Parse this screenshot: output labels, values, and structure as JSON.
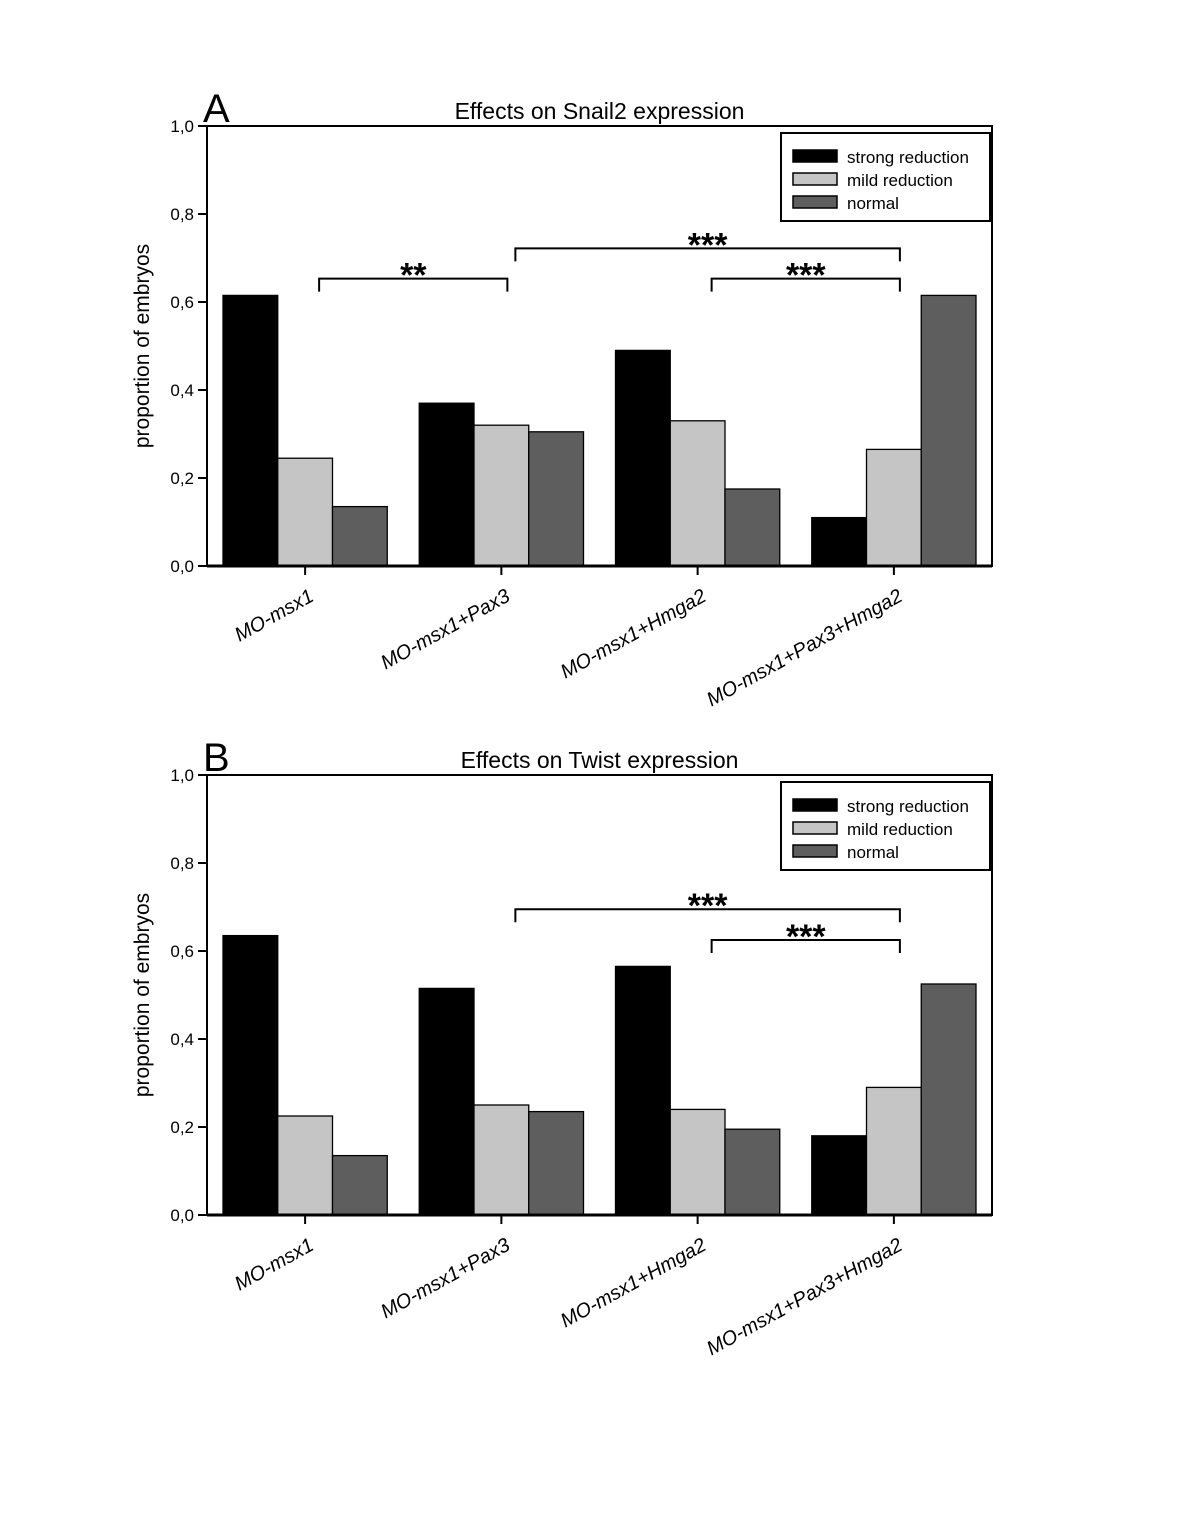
{
  "figure": {
    "background": "#ffffff",
    "panel_letters": [
      "A",
      "B"
    ]
  },
  "chart_data": [
    {
      "type": "bar",
      "panel_label": "A",
      "title": "Effects on Snail2 expression",
      "xlabel": "",
      "ylabel": "proportion of embryos",
      "ylim": [
        0,
        1
      ],
      "grid": false,
      "legend_position": "top-right",
      "decimal_separator": ",",
      "yticks": [
        "0,0",
        "0,2",
        "0,4",
        "0,6",
        "0,8",
        "1,0"
      ],
      "ytick_values": [
        0,
        0.2,
        0.4,
        0.6,
        0.8,
        1
      ],
      "categories": [
        "MO-msx1",
        "MO-msx1+Pax3",
        "MO-msx1+Hmga2",
        "MO-msx1+Pax3+Hmga2"
      ],
      "series": [
        {
          "key": "strong",
          "name": "strong reduction",
          "color": "#000000",
          "values": [
            0.615,
            0.37,
            0.49,
            0.11
          ]
        },
        {
          "key": "mild",
          "name": "mild reduction",
          "color": "#c5c5c5",
          "values": [
            0.245,
            0.32,
            0.33,
            0.265
          ]
        },
        {
          "key": "normal",
          "name": "normal",
          "color": "#5e5e5e",
          "values": [
            0.135,
            0.305,
            0.175,
            0.615
          ]
        }
      ],
      "significance_brackets": [
        {
          "from_group": 0,
          "to_group": 1,
          "label": "**",
          "height": 0.653
        },
        {
          "from_group": 1,
          "to_group": 3,
          "label": "***",
          "height": 0.722
        },
        {
          "from_group": 2,
          "to_group": 3,
          "label": "***",
          "height": 0.653
        }
      ]
    },
    {
      "type": "bar",
      "panel_label": "B",
      "title": "Effects on Twist expression",
      "xlabel": "",
      "ylabel": "proportion of embryos",
      "ylim": [
        0,
        1
      ],
      "grid": false,
      "legend_position": "top-right",
      "decimal_separator": ",",
      "yticks": [
        "0,0",
        "0,2",
        "0,4",
        "0,6",
        "0,8",
        "1,0"
      ],
      "ytick_values": [
        0,
        0.2,
        0.4,
        0.6,
        0.8,
        1
      ],
      "categories": [
        "MO-msx1",
        "MO-msx1+Pax3",
        "MO-msx1+Hmga2",
        "MO-msx1+Pax3+Hmga2"
      ],
      "series": [
        {
          "key": "strong",
          "name": "strong reduction",
          "color": "#000000",
          "values": [
            0.635,
            0.515,
            0.565,
            0.18
          ]
        },
        {
          "key": "mild",
          "name": "mild reduction",
          "color": "#c5c5c5",
          "values": [
            0.225,
            0.25,
            0.24,
            0.29
          ]
        },
        {
          "key": "normal",
          "name": "normal",
          "color": "#5e5e5e",
          "values": [
            0.135,
            0.235,
            0.195,
            0.525
          ]
        }
      ],
      "significance_brackets": [
        {
          "from_group": 1,
          "to_group": 3,
          "label": "***",
          "height": 0.695
        },
        {
          "from_group": 2,
          "to_group": 3,
          "label": "***",
          "height": 0.625
        }
      ]
    }
  ]
}
